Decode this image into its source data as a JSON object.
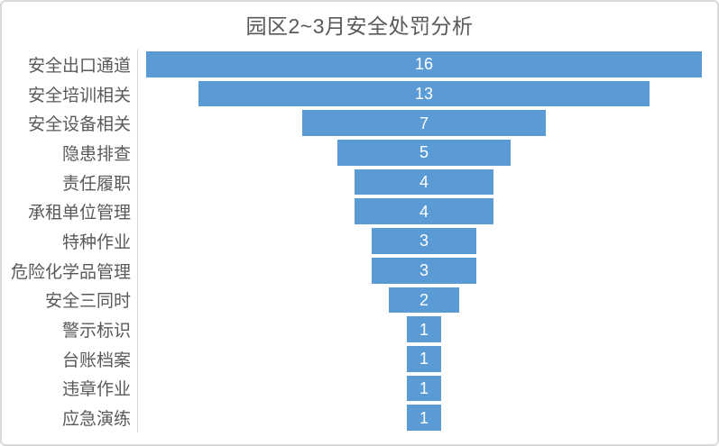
{
  "title": "园区2~3月安全处罚分析",
  "colors": {
    "bar": "#5b9bd5",
    "title_text": "#595959",
    "label_text": "#595959",
    "value_text": "#ffffff",
    "axis_line": "#d9d9d9",
    "frame_border": "#d9d9d9",
    "background": "#ffffff"
  },
  "chart_data": {
    "type": "bar",
    "subtype": "funnel",
    "orientation": "horizontal-centered",
    "title": "园区2~3月安全处罚分析",
    "categories": [
      "安全出口通道",
      "安全培训相关",
      "安全设备相关",
      "隐患排查",
      "责任履职",
      "承租单位管理",
      "特种作业",
      "危险化学品管理",
      "安全三同时",
      "警示标识",
      "台账档案",
      "违章作业",
      "应急演练"
    ],
    "values": [
      16,
      13,
      7,
      5,
      4,
      4,
      3,
      3,
      2,
      1,
      1,
      1,
      1
    ],
    "xlabel": "",
    "ylabel": "",
    "xlim": [
      0,
      16
    ],
    "grid": false,
    "legend": "none",
    "value_labels": "inside-center"
  }
}
